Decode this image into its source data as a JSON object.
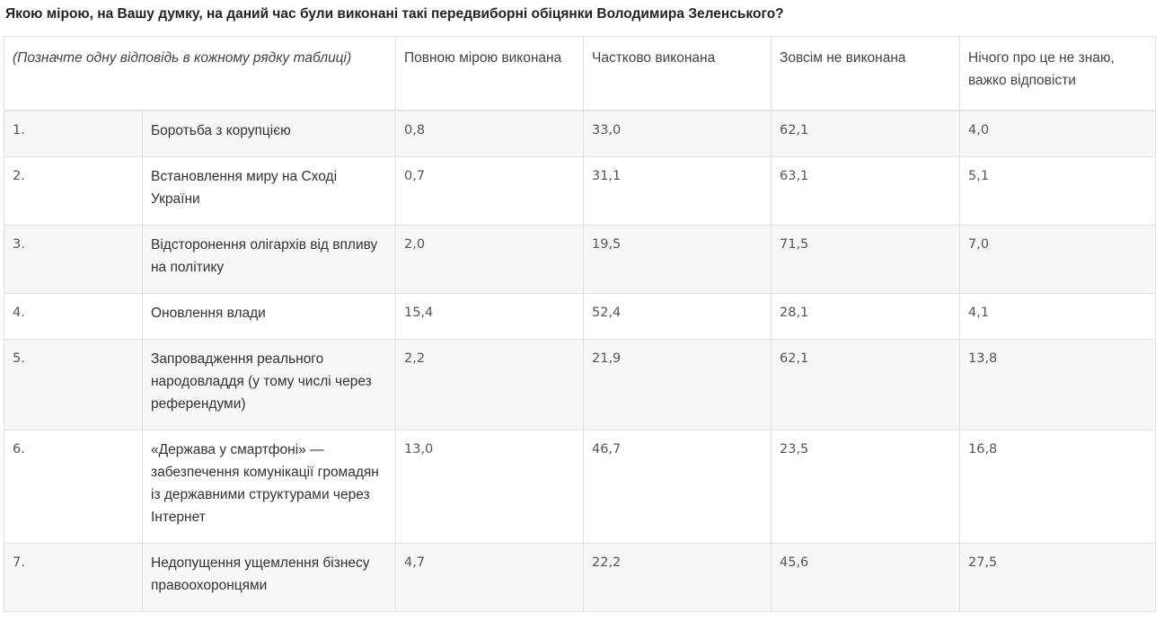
{
  "title": "Якою мірою, на Вашу думку, на даний час були виконані такі передвиборні обіцянки Володимира Зеленського?",
  "table": {
    "instruction": "(Позначте одну відповідь в кожному рядку таблиці)",
    "columns": [
      "Повною мірою виконана",
      "Частково виконана",
      "Зовсім не виконана",
      "Нічого про це не знаю, важко відповісти"
    ],
    "rows": [
      {
        "num": "1.",
        "label": "Боротьба з корупцією",
        "values": [
          "0,8",
          "33,0",
          "62,1",
          "4,0"
        ]
      },
      {
        "num": "2.",
        "label": "Встановлення миру на Сході України",
        "values": [
          "0,7",
          "31,1",
          "63,1",
          "5,1"
        ]
      },
      {
        "num": "3.",
        "label": "Відсторонення олігархів від впливу на політику",
        "values": [
          "2,0",
          "19,5",
          "71,5",
          "7,0"
        ]
      },
      {
        "num": "4.",
        "label": "Оновлення влади",
        "values": [
          "15,4",
          "52,4",
          "28,1",
          "4,1"
        ]
      },
      {
        "num": "5.",
        "label": "Запровадження реального народовладдя (у тому числі через референдуми)",
        "values": [
          "2,2",
          "21,9",
          "62,1",
          "13,8"
        ]
      },
      {
        "num": "6.",
        "label": "«Держава у смартфоні» — забезпечення комунікації громадян із державними структурами через Інтернет",
        "values": [
          "13,0",
          "46,7",
          "23,5",
          "16,8"
        ]
      },
      {
        "num": "7.",
        "label": "Недопущення ущемлення бізнесу правоохоронцями",
        "values": [
          "4,7",
          "22,2",
          "45,6",
          "27,5"
        ]
      }
    ]
  }
}
